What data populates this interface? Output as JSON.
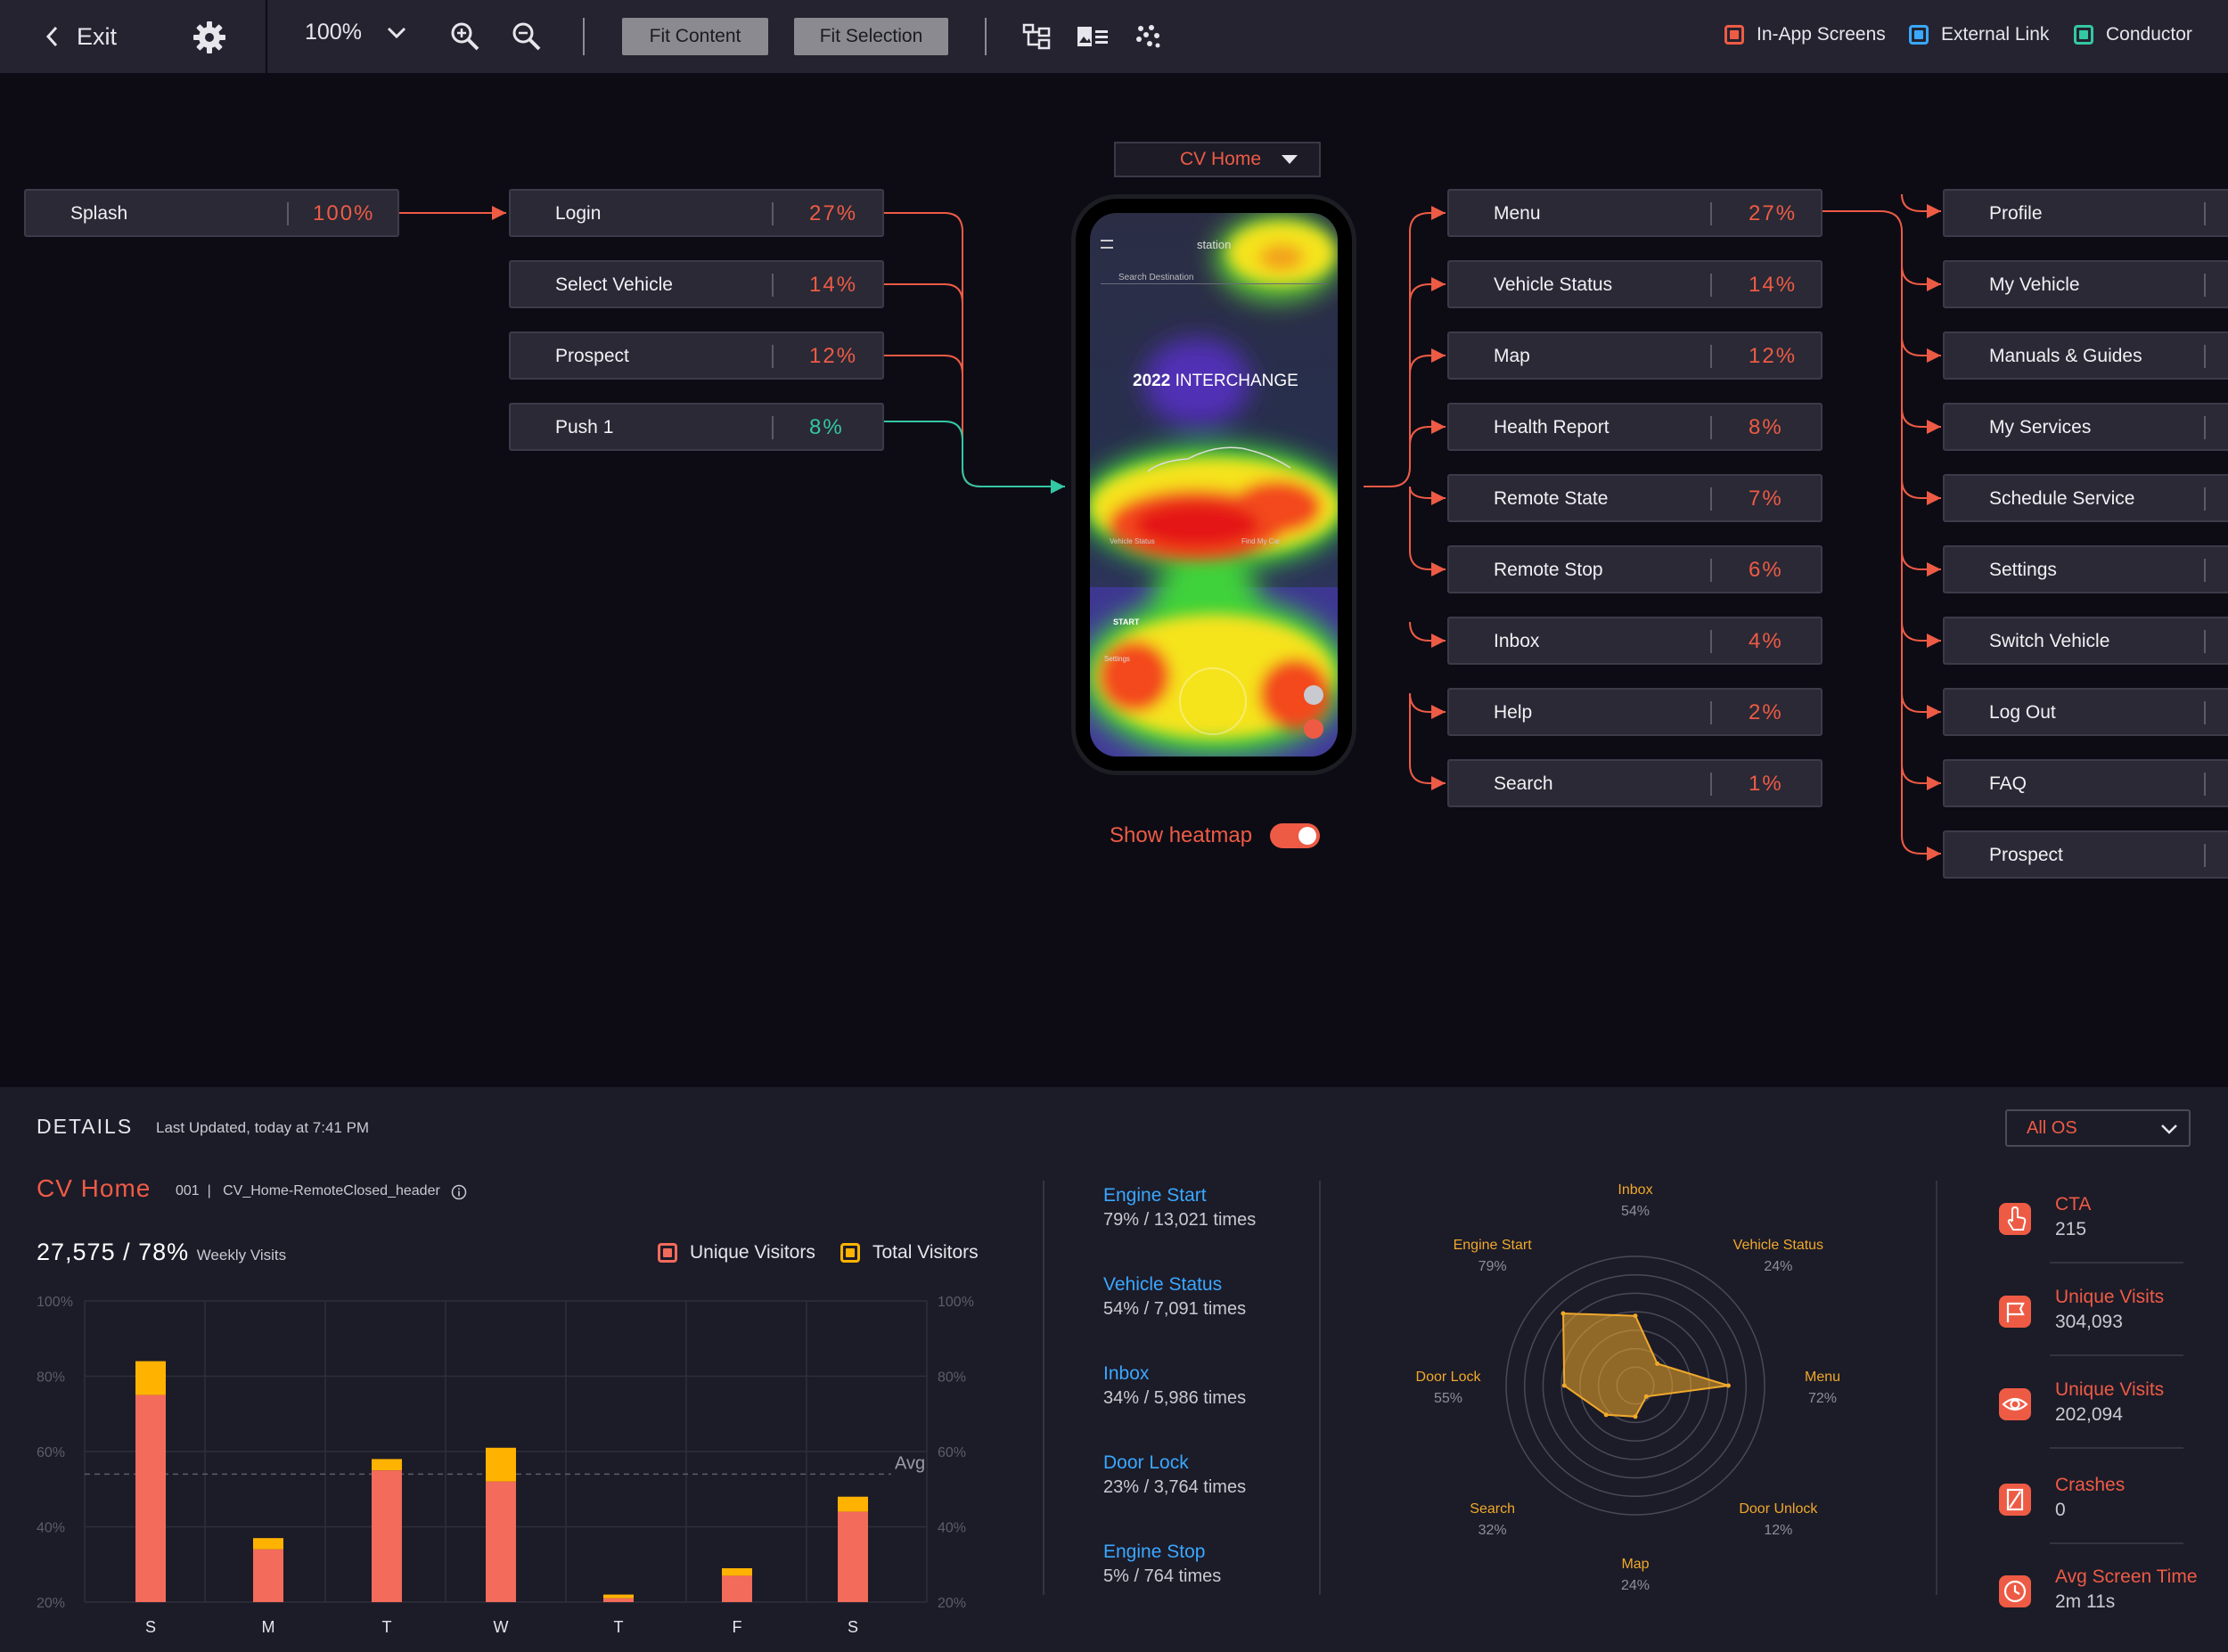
{
  "toolbar": {
    "exit_label": "Exit",
    "zoom_level": "100%",
    "fit_content_label": "Fit Content",
    "fit_selection_label": "Fit Selection",
    "legend": [
      {
        "label": "In-App Screens",
        "color": "#ee5b45"
      },
      {
        "label": "External Link",
        "color": "#3aa8ff"
      },
      {
        "label": "Conductor",
        "color": "#34c7a3"
      }
    ]
  },
  "flow": {
    "source": {
      "label": "Splash",
      "pct": "100%"
    },
    "inbound": [
      {
        "label": "Login",
        "pct": "27%",
        "type": "in-app"
      },
      {
        "label": "Select Vehicle",
        "pct": "14%",
        "type": "in-app"
      },
      {
        "label": "Prospect",
        "pct": "12%",
        "type": "in-app"
      },
      {
        "label": "Push 1",
        "pct": "8%",
        "type": "conductor"
      }
    ],
    "current_screen": "CV Home",
    "outbound": [
      {
        "label": "Menu",
        "pct": "27%"
      },
      {
        "label": "Vehicle Status",
        "pct": "14%"
      },
      {
        "label": "Map",
        "pct": "12%"
      },
      {
        "label": "Health Report",
        "pct": "8%"
      },
      {
        "label": "Remote State",
        "pct": "7%"
      },
      {
        "label": "Remote Stop",
        "pct": "6%"
      },
      {
        "label": "Inbox",
        "pct": "4%"
      },
      {
        "label": "Help",
        "pct": "2%"
      },
      {
        "label": "Search",
        "pct": "1%"
      }
    ],
    "menu_children": [
      "Profile",
      "My Vehicle",
      "Manuals & Guides",
      "My Services",
      "Schedule Service",
      "Settings",
      "Switch Vehicle",
      "Log Out",
      "FAQ",
      "Prospect"
    ],
    "heatmap_toggle_label": "Show heatmap",
    "heatmap_on": true
  },
  "phone": {
    "brand": "station",
    "search_placeholder": "Search Destination",
    "model_year": "2022",
    "model_name": "INTERCHANGE",
    "vehicle_status_btn": "Vehicle Status",
    "find_car_btn": "Find My Car",
    "start_label": "START",
    "settings_label": "Settings"
  },
  "details": {
    "heading": "DETAILS",
    "last_updated": "Last Updated, today at 7:41 PM",
    "os_filter": "All OS",
    "screen_name": "CV Home",
    "screen_id": "001",
    "screen_key": "CV_Home-RemoteClosed_header",
    "weekly_visits": "27,575",
    "weekly_pct": "78%",
    "weekly_label": "Weekly Visits",
    "legend_unique": "Unique Visitors",
    "legend_total": "Total Visitors",
    "avg_label": "Avg"
  },
  "chart_data": {
    "type": "bar",
    "categories": [
      "S",
      "M",
      "T",
      "W",
      "T",
      "F",
      "S"
    ],
    "series": [
      {
        "name": "Unique Visitors",
        "values": [
          75,
          34,
          55,
          52,
          21,
          27,
          44
        ]
      },
      {
        "name": "Total Visitors",
        "values": [
          84,
          37,
          58,
          61,
          22,
          29,
          48
        ]
      }
    ],
    "yticks": [
      "20%",
      "40%",
      "60%",
      "80%",
      "100%"
    ],
    "ylim": [
      20,
      100
    ],
    "avg": 54,
    "colors": {
      "unique": "#f26b5b",
      "total": "#ffb300"
    }
  },
  "metrics": [
    {
      "name": "Engine Start",
      "value": "79% / 13,021 times"
    },
    {
      "name": "Vehicle Status",
      "value": "54% / 7,091 times"
    },
    {
      "name": "Inbox",
      "value": "34% / 5,986 times"
    },
    {
      "name": "Door Lock",
      "value": "23% / 3,764 times"
    },
    {
      "name": "Engine Stop",
      "value": "5% / 764 times"
    }
  ],
  "radar": [
    {
      "label": "Inbox",
      "pct": "54%",
      "value": 54
    },
    {
      "label": "Vehicle Status",
      "pct": "24%",
      "value": 24
    },
    {
      "label": "Menu",
      "pct": "72%",
      "value": 72
    },
    {
      "label": "Door Unlock",
      "pct": "12%",
      "value": 12
    },
    {
      "label": "Map",
      "pct": "24%",
      "value": 24
    },
    {
      "label": "Search",
      "pct": "32%",
      "value": 32
    },
    {
      "label": "Door Lock",
      "pct": "55%",
      "value": 55
    },
    {
      "label": "Engine Start",
      "pct": "79%",
      "value": 79
    }
  ],
  "kpis": [
    {
      "title": "CTA",
      "value": "215",
      "icon": "tap-icon"
    },
    {
      "title": "Unique Visits",
      "value": "304,093",
      "icon": "flag-icon"
    },
    {
      "title": "Unique Visits",
      "value": "202,094",
      "icon": "eye-icon"
    },
    {
      "title": "Crashes",
      "value": "0",
      "icon": "crash-icon"
    },
    {
      "title": "Avg Screen Time",
      "value": "2m 11s",
      "icon": "clock-icon"
    }
  ]
}
